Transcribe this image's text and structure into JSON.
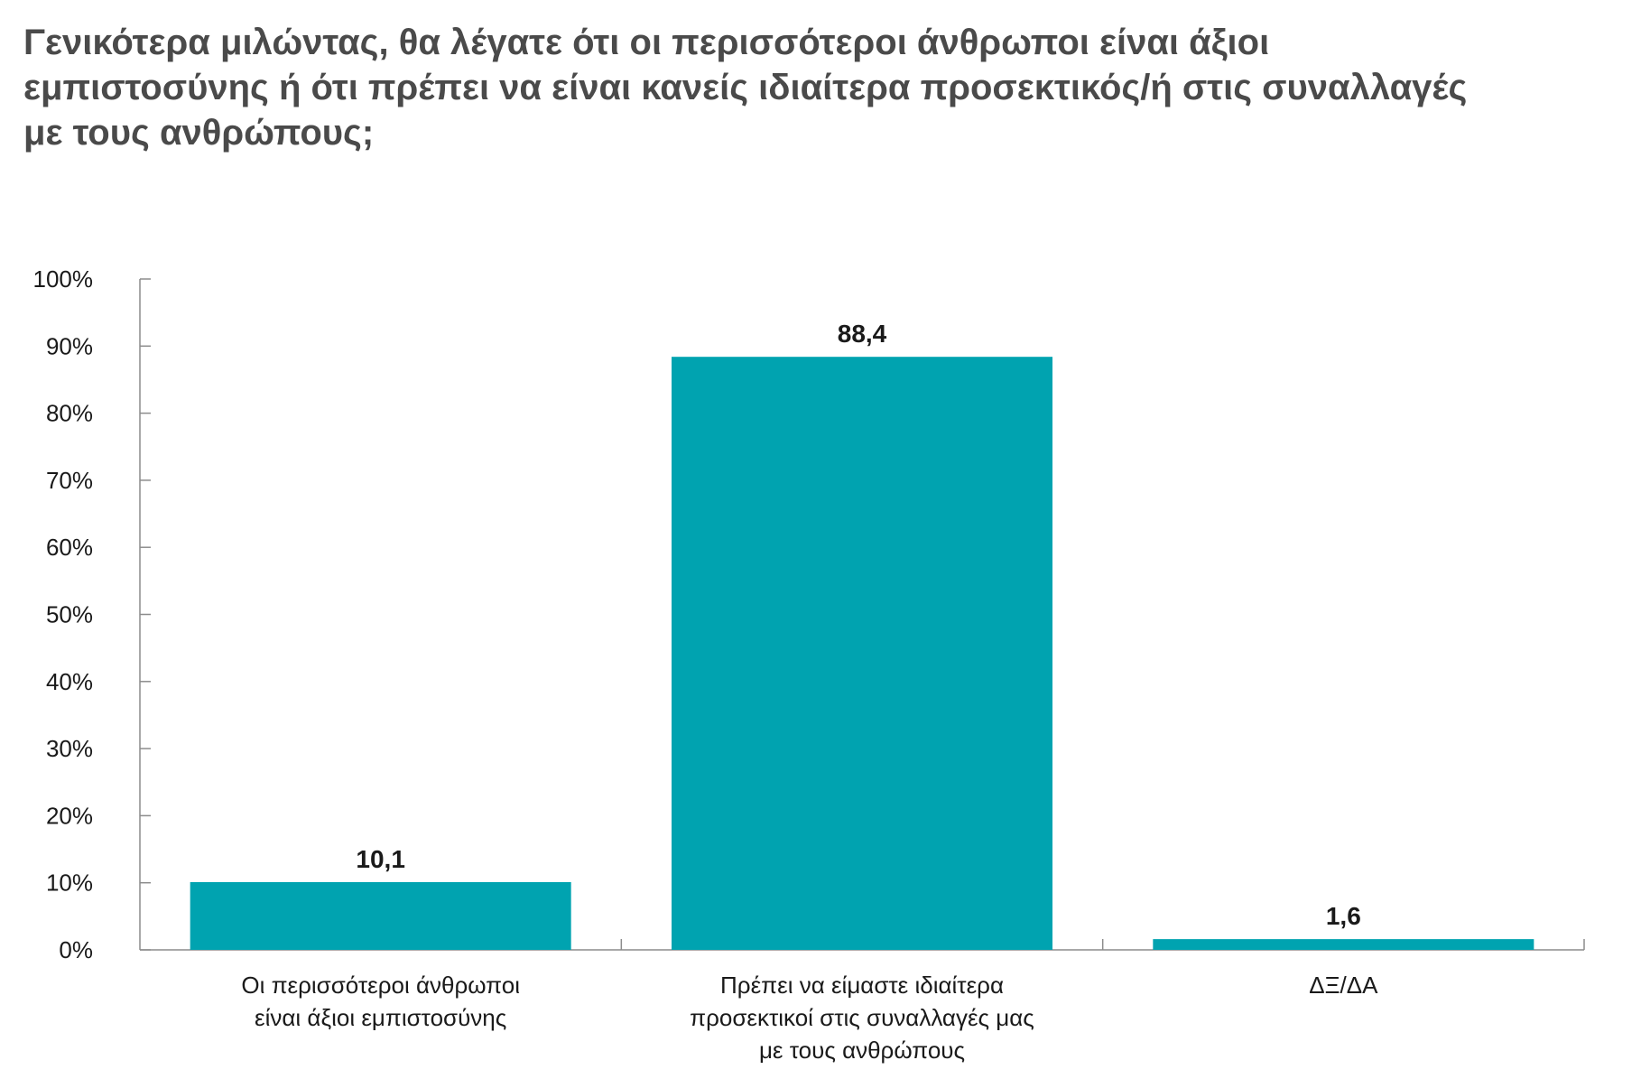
{
  "chart_data": {
    "type": "bar",
    "title_lines": [
      "Γενικότερα μιλώντας, θα λέγατε ότι οι περισσότεροι άνθρωποι είναι άξιοι",
      "εμπιστοσύνης ή ότι πρέπει να είναι κανείς ιδιαίτερα προσεκτικός/ή στις συναλλαγές",
      "με τους ανθρώπους;"
    ],
    "categories": [
      [
        "Οι περισσότεροι άνθρωποι",
        "είναι άξιοι εμπιστοσύνης"
      ],
      [
        "Πρέπει να είμαστε ιδιαίτερα",
        "προσεκτικοί στις συναλλαγές μας",
        "με τους ανθρώπους"
      ],
      [
        "ΔΞ/ΔΑ"
      ]
    ],
    "values": [
      10.1,
      88.4,
      1.6
    ],
    "value_labels": [
      "10,1",
      "88,4",
      "1,6"
    ],
    "ylim": [
      0,
      100
    ],
    "yticks": [
      0,
      10,
      20,
      30,
      40,
      50,
      60,
      70,
      80,
      90,
      100
    ],
    "ytick_labels": [
      "0%",
      "10%",
      "20%",
      "30%",
      "40%",
      "50%",
      "60%",
      "70%",
      "80%",
      "90%",
      "100%"
    ],
    "xlabel": "",
    "ylabel": "",
    "grid": false,
    "legend": "none",
    "bar_color": "#00a3b0",
    "axis_color": "#8c8c8c"
  }
}
